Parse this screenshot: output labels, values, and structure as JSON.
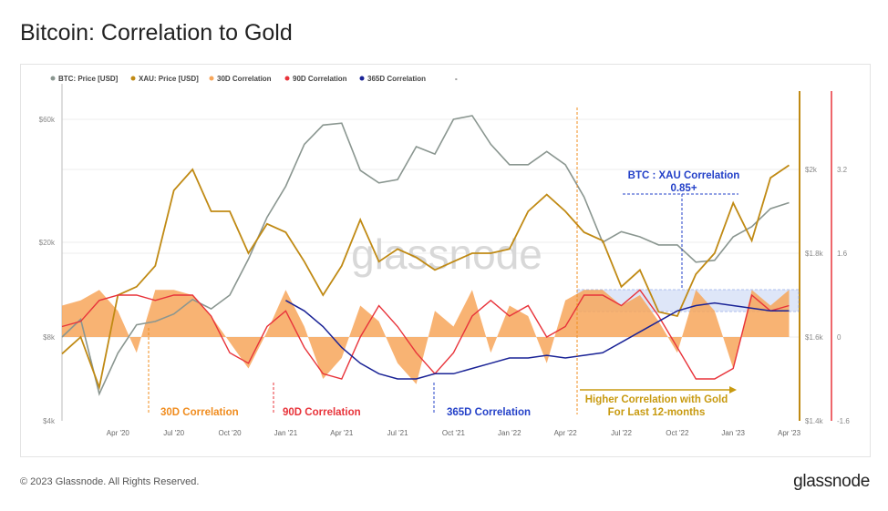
{
  "title": "Bitcoin: Correlation to Gold",
  "footer": "© 2023 Glassnode. All Rights Reserved.",
  "logo": "glassnode",
  "watermark": "glassnode",
  "colors": {
    "btc": "#8a9690",
    "xau": "#c08a14",
    "c30": "#f7a65a",
    "c90": "#e8333a",
    "c365": "#1a2396",
    "highlight": "#c9d6f5",
    "annot_orange": "#f08c1e",
    "annot_red": "#e8333a",
    "annot_blue": "#2340c8",
    "annot_gold": "#c89a10"
  },
  "chart_data": {
    "type": "line",
    "legend": [
      "BTC: Price [USD]",
      "XAU: Price [USD]",
      "30D Correlation",
      "90D Correlation",
      "365D Correlation",
      "-"
    ],
    "legend_placement": "top-left",
    "x_start": "2020-01",
    "x_step": "month",
    "x_ticks": [
      "Apr '20",
      "Jul '20",
      "Oct '20",
      "Jan '21",
      "Apr '21",
      "Jul '21",
      "Oct '21",
      "Jan '22",
      "Apr '22",
      "Jul '22",
      "Oct '22",
      "Jan '23",
      "Apr '23"
    ],
    "y_left_ticks": [
      "$4k",
      "$8k",
      "$20k",
      "$60k"
    ],
    "y_left_values": [
      4000,
      8000,
      20000,
      60000
    ],
    "y_xau_ticks": [
      "$1.4k",
      "$1.6k",
      "$1.8k",
      "$2k"
    ],
    "y_xau_values": [
      1400,
      1600,
      1800,
      2000
    ],
    "y_corr_ticks": [
      "-1.6",
      "0",
      "1.6",
      "3.2"
    ],
    "y_corr_values": [
      -1.6,
      0,
      1.6,
      3.2
    ],
    "series": [
      {
        "name": "BTC: Price [USD]",
        "start": 0,
        "values": [
          8000,
          9500,
          5000,
          7000,
          9000,
          9300,
          10000,
          11500,
          10500,
          12000,
          17000,
          25000,
          33000,
          48000,
          57000,
          58000,
          38000,
          34000,
          35000,
          47000,
          44000,
          60000,
          62000,
          48000,
          40000,
          40000,
          45000,
          40000,
          30000,
          20000,
          22000,
          21000,
          19500,
          19500,
          16500,
          16800,
          21000,
          23000,
          27000,
          28500
        ]
      },
      {
        "name": "XAU: Price [USD]",
        "start": 0,
        "values": [
          1560,
          1600,
          1480,
          1700,
          1720,
          1770,
          1950,
          2000,
          1900,
          1900,
          1800,
          1870,
          1850,
          1780,
          1700,
          1770,
          1880,
          1780,
          1810,
          1790,
          1760,
          1780,
          1800,
          1800,
          1810,
          1900,
          1940,
          1900,
          1850,
          1830,
          1720,
          1760,
          1660,
          1650,
          1750,
          1800,
          1920,
          1830,
          1980,
          2010
        ]
      },
      {
        "name": "30D Correlation",
        "start": 0,
        "values": [
          0.6,
          0.7,
          0.9,
          0.5,
          -0.3,
          0.9,
          0.9,
          0.8,
          0.4,
          -0.1,
          -0.6,
          0.1,
          0.9,
          0.2,
          -0.8,
          -0.4,
          0.6,
          0.3,
          -0.5,
          -0.9,
          0.5,
          0.2,
          0.9,
          -0.3,
          0.6,
          0.4,
          -0.5,
          0.7,
          0.9,
          0.9,
          0.6,
          0.8,
          0.3,
          -0.3,
          0.9,
          0.5,
          -0.6,
          0.9,
          0.6,
          0.9
        ]
      },
      {
        "name": "90D Correlation",
        "start": 0,
        "values": [
          0.2,
          0.3,
          0.7,
          0.8,
          0.8,
          0.7,
          0.8,
          0.8,
          0.4,
          -0.3,
          -0.5,
          0.2,
          0.5,
          -0.2,
          -0.7,
          -0.8,
          0.0,
          0.6,
          0.2,
          -0.3,
          -0.7,
          -0.3,
          0.4,
          0.7,
          0.4,
          0.6,
          0.0,
          0.2,
          0.8,
          0.8,
          0.6,
          0.9,
          0.4,
          -0.2,
          -0.8,
          -0.8,
          -0.6,
          0.8,
          0.5,
          0.6
        ]
      },
      {
        "name": "365D Correlation",
        "start": 12,
        "values": [
          0.7,
          0.5,
          0.2,
          -0.2,
          -0.5,
          -0.7,
          -0.8,
          -0.8,
          -0.7,
          -0.7,
          -0.6,
          -0.5,
          -0.4,
          -0.4,
          -0.35,
          -0.4,
          -0.35,
          -0.3,
          -0.1,
          0.1,
          0.3,
          0.5,
          0.6,
          0.65,
          0.6,
          0.55,
          0.5,
          0.5
        ]
      }
    ],
    "annotations": {
      "a30": "30D Correlation",
      "a90": "90D Correlation",
      "a365": "365D Correlation",
      "higher1": "Higher Correlation with Gold",
      "higher2": "For Last 12-months",
      "btcxau1": "BTC : XAU Correlation",
      "btcxau2": "0.85+"
    }
  }
}
